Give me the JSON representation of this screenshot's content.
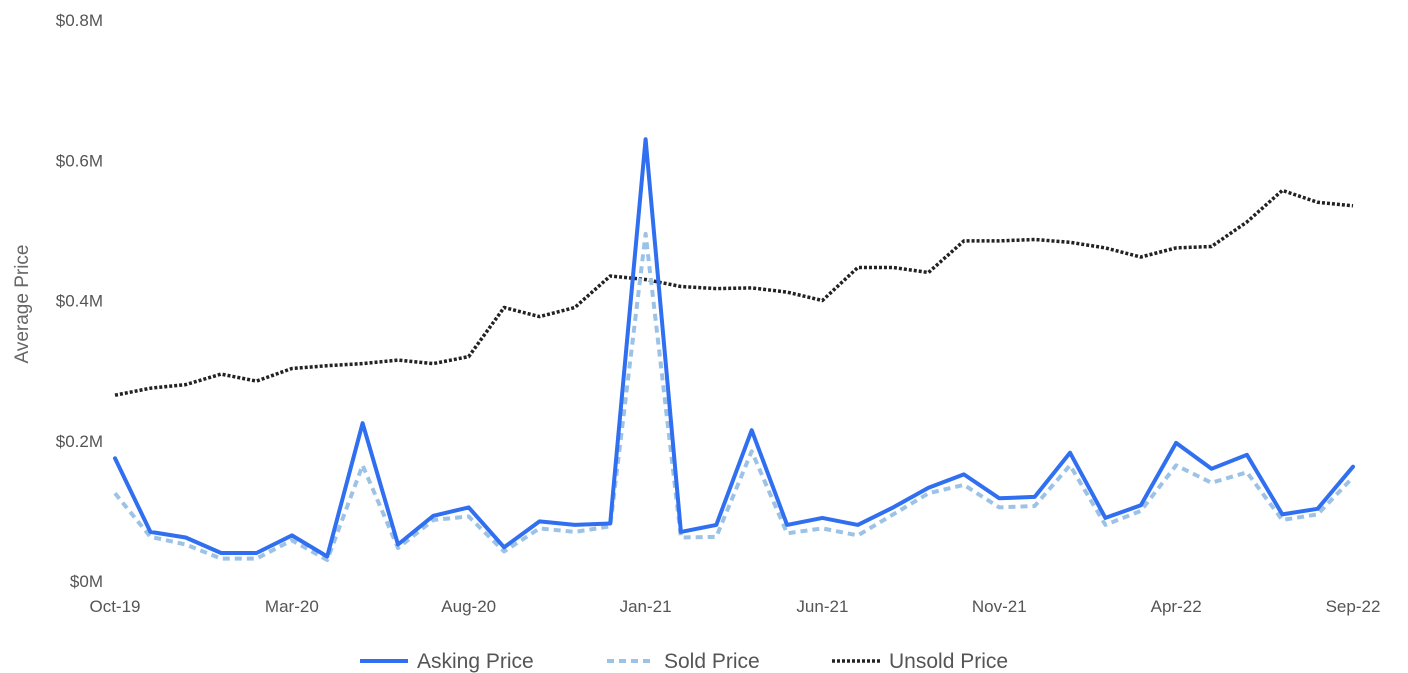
{
  "chart_data": {
    "type": "line",
    "title": "",
    "xlabel": "",
    "ylabel": "Average Price",
    "ylim": [
      0,
      0.8
    ],
    "y_ticks": [
      {
        "value": 0,
        "label": "$0M"
      },
      {
        "value": 0.2,
        "label": "$0.2M"
      },
      {
        "value": 0.4,
        "label": "$0.4M"
      },
      {
        "value": 0.6,
        "label": "$0.6M"
      },
      {
        "value": 0.8,
        "label": "$0.8M"
      }
    ],
    "x_ticks": [
      {
        "index": 0,
        "label": "Oct-19"
      },
      {
        "index": 5,
        "label": "Mar-20"
      },
      {
        "index": 10,
        "label": "Aug-20"
      },
      {
        "index": 15,
        "label": "Jan-21"
      },
      {
        "index": 20,
        "label": "Jun-21"
      },
      {
        "index": 25,
        "label": "Nov-21"
      },
      {
        "index": 30,
        "label": "Apr-22"
      },
      {
        "index": 35,
        "label": "Sep-22"
      }
    ],
    "categories": [
      "Oct-19",
      "Nov-19",
      "Dec-19",
      "Jan-20",
      "Feb-20",
      "Mar-20",
      "Apr-20",
      "May-20",
      "Jun-20",
      "Jul-20",
      "Aug-20",
      "Sep-20",
      "Oct-20",
      "Nov-20",
      "Dec-20",
      "Jan-21",
      "Feb-21",
      "Mar-21",
      "Apr-21",
      "May-21",
      "Jun-21",
      "Jul-21",
      "Aug-21",
      "Sep-21",
      "Oct-21",
      "Nov-21",
      "Dec-21",
      "Jan-22",
      "Feb-22",
      "Mar-22",
      "Apr-22",
      "May-22",
      "Jun-22",
      "Jul-22",
      "Aug-22",
      "Sep-22"
    ],
    "grid": false,
    "legend_position": "bottom",
    "series": [
      {
        "name": "Asking Price",
        "color": "#2f6ff0",
        "style": "solid",
        "values": [
          0.175,
          0.07,
          0.062,
          0.04,
          0.04,
          0.065,
          0.035,
          0.225,
          0.052,
          0.093,
          0.105,
          0.048,
          0.085,
          0.08,
          0.082,
          0.63,
          0.07,
          0.08,
          0.215,
          0.08,
          0.09,
          0.08,
          0.105,
          0.133,
          0.152,
          0.118,
          0.12,
          0.183,
          0.09,
          0.108,
          0.197,
          0.16,
          0.18,
          0.095,
          0.103,
          0.163
        ]
      },
      {
        "name": "Sold Price",
        "color": "#9cc3e6",
        "style": "dashed",
        "values": [
          0.125,
          0.063,
          0.052,
          0.032,
          0.032,
          0.058,
          0.03,
          0.165,
          0.047,
          0.087,
          0.092,
          0.042,
          0.075,
          0.07,
          0.078,
          0.495,
          0.062,
          0.063,
          0.185,
          0.068,
          0.075,
          0.065,
          0.095,
          0.125,
          0.137,
          0.105,
          0.107,
          0.165,
          0.08,
          0.1,
          0.165,
          0.14,
          0.155,
          0.087,
          0.095,
          0.148
        ]
      },
      {
        "name": "Unsold Price",
        "color": "#222222",
        "style": "dotted",
        "values": [
          0.265,
          0.275,
          0.28,
          0.295,
          0.285,
          0.303,
          0.307,
          0.31,
          0.315,
          0.31,
          0.32,
          0.39,
          0.377,
          0.39,
          0.435,
          0.43,
          0.42,
          0.417,
          0.418,
          0.412,
          0.4,
          0.447,
          0.447,
          0.44,
          0.485,
          0.485,
          0.487,
          0.483,
          0.475,
          0.462,
          0.475,
          0.477,
          0.512,
          0.557,
          0.54,
          0.535
        ]
      }
    ]
  }
}
